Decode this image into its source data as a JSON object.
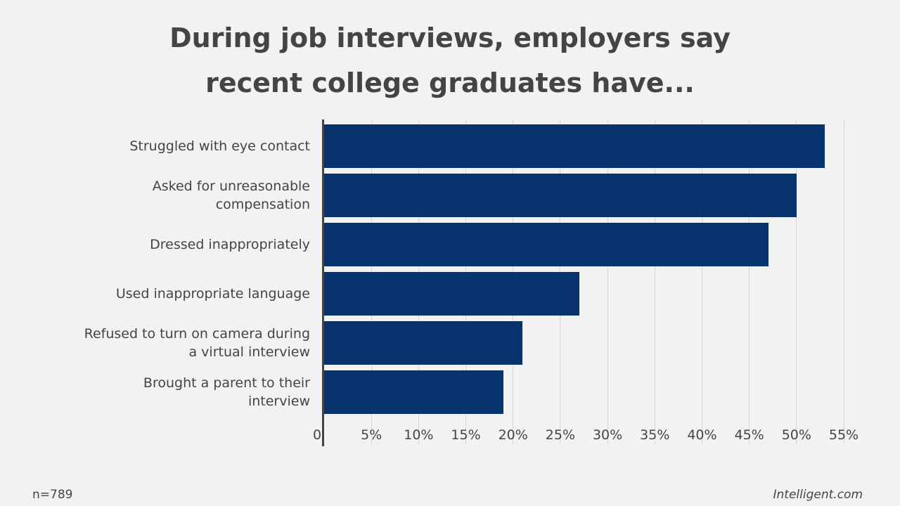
{
  "chart_data": {
    "type": "bar",
    "orientation": "horizontal",
    "title": "During job interviews, employers say recent college graduates have...",
    "categories": [
      "Struggled with eye contact",
      "Asked for unreasonable compensation",
      "Dressed inappropriately",
      "Used inappropriate language",
      "Refused to turn on camera during a virtual interview",
      "Brought a parent to their interview"
    ],
    "values": [
      53,
      50,
      47,
      27,
      21,
      19
    ],
    "color": "#07346f",
    "xlim": [
      0,
      55
    ],
    "xticks": [
      0,
      {
        "value": 5,
        "label": "5%"
      },
      {
        "value": 10,
        "label": "10%"
      },
      {
        "value": 15,
        "label": "15%"
      },
      {
        "value": 20,
        "label": "20%"
      },
      {
        "value": 25,
        "label": "25%"
      },
      {
        "value": 30,
        "label": "30%"
      },
      {
        "value": 35,
        "label": "35%"
      },
      {
        "value": 40,
        "label": "40%"
      },
      {
        "value": 45,
        "label": "45%"
      },
      {
        "value": 50,
        "label": "50%"
      },
      {
        "value": 55,
        "label": "55%"
      }
    ],
    "grid": true,
    "note": "n=789",
    "source": "Intelligent.com"
  }
}
